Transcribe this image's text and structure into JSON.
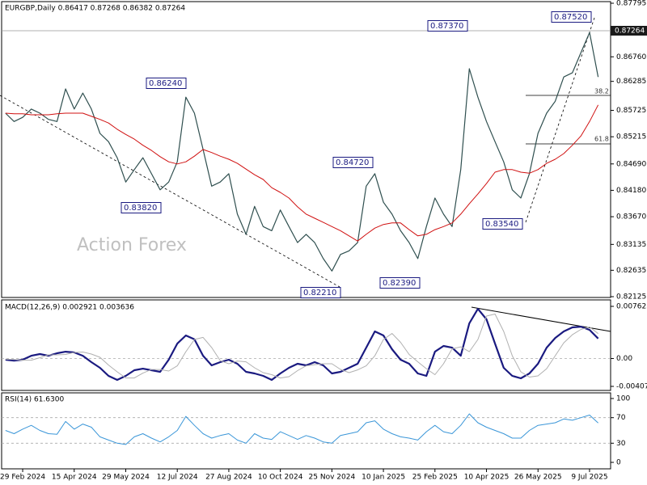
{
  "chart_data": [
    {
      "type": "line",
      "title": "EURGBP,Daily  0.86417 0.87268 0.86382 0.87264",
      "categories": [
        null,
        null,
        "29 Feb 2024",
        null,
        null,
        null,
        null,
        null,
        "15 Apr 2024",
        null,
        null,
        null,
        null,
        null,
        "29 May 2024",
        null,
        null,
        null,
        null,
        null,
        "12 Jul 2024",
        null,
        null,
        null,
        null,
        null,
        "27 Aug 2024",
        null,
        null,
        null,
        null,
        null,
        "10 Oct 2024",
        null,
        null,
        null,
        null,
        null,
        "25 Nov 2024",
        null,
        null,
        null,
        null,
        null,
        "10 Jan 2025",
        null,
        null,
        null,
        null,
        null,
        "25 Feb 2025",
        null,
        null,
        null,
        null,
        null,
        "10 Apr 2025",
        null,
        null,
        null,
        null,
        null,
        "26 May 2025",
        null,
        null,
        null,
        null,
        null,
        "9 Jul 2025",
        null
      ],
      "series": [
        {
          "color": "#2f4f4f",
          "values": [
            0.8567,
            0.8551,
            0.8559,
            0.8575,
            0.8567,
            0.8555,
            0.8551,
            0.8614,
            0.8575,
            0.8606,
            0.8575,
            0.8528,
            0.8512,
            0.8481,
            0.8434,
            0.8458,
            0.8481,
            0.845,
            0.8419,
            0.8434,
            0.8473,
            0.8598,
            0.8567,
            0.8497,
            0.8426,
            0.8434,
            0.845,
            0.8372,
            0.8333,
            0.8387,
            0.8348,
            0.834,
            0.838,
            0.8348,
            0.8317,
            0.8333,
            0.8317,
            0.8286,
            0.8262,
            0.8294,
            0.8301,
            0.8317,
            0.8426,
            0.845,
            0.8395,
            0.8372,
            0.834,
            0.8317,
            0.8286,
            0.8348,
            0.8403,
            0.8372,
            0.8348,
            0.8458,
            0.8653,
            0.8598,
            0.8551,
            0.8512,
            0.8473,
            0.8419,
            0.8403,
            0.845,
            0.8528,
            0.8567,
            0.859,
            0.8637,
            0.8645,
            0.8684,
            0.8723,
            0.8637
          ]
        },
        {
          "color": "#d01010",
          "values": [
            0.8567,
            0.8566,
            0.8566,
            0.8564,
            0.8564,
            0.8564,
            0.8566,
            0.8567,
            0.8567,
            0.8567,
            0.8561,
            0.8555,
            0.8548,
            0.8536,
            0.8526,
            0.8517,
            0.8505,
            0.8495,
            0.8483,
            0.8473,
            0.8469,
            0.8473,
            0.8484,
            0.8497,
            0.8491,
            0.8484,
            0.8478,
            0.847,
            0.8459,
            0.8448,
            0.8439,
            0.8423,
            0.8414,
            0.8403,
            0.8386,
            0.8372,
            0.8364,
            0.8356,
            0.8348,
            0.834,
            0.833,
            0.832,
            0.8333,
            0.8345,
            0.8352,
            0.8355,
            0.8355,
            0.8342,
            0.833,
            0.8333,
            0.8342,
            0.8348,
            0.8355,
            0.8372,
            0.8392,
            0.8411,
            0.8431,
            0.8453,
            0.8458,
            0.8458,
            0.8453,
            0.8451,
            0.8458,
            0.847,
            0.8478,
            0.8489,
            0.8505,
            0.8523,
            0.8551,
            0.8583
          ]
        }
      ],
      "ylim": [
        0.82125,
        0.87795
      ],
      "yticks": [
        {
          "value": 0.87795,
          "label": "0.87795"
        },
        {
          "value": 0.8676,
          "label": "0.86760"
        },
        {
          "value": 0.86285,
          "label": "0.86285"
        },
        {
          "value": 0.85725,
          "label": "0.85725"
        },
        {
          "value": 0.85215,
          "label": "0.85215"
        },
        {
          "value": 0.8469,
          "label": "0.84690"
        },
        {
          "value": 0.8418,
          "label": "0.84180"
        },
        {
          "value": 0.8367,
          "label": "0.83670"
        },
        {
          "value": 0.83135,
          "label": "0.83135"
        },
        {
          "value": 0.82635,
          "label": "0.82635"
        },
        {
          "value": 0.82125,
          "label": "0.82125"
        }
      ],
      "last_price": {
        "value": 0.87264,
        "label": "0.87264"
      },
      "annotations": [
        "0.86240",
        "0.83820",
        "0.84720",
        "0.82210",
        "0.82390",
        "0.87370",
        "0.83540",
        "0.87520",
        "38.2",
        "61.8",
        "Action Forex"
      ],
      "grid": false
    },
    {
      "type": "line",
      "title": "MACD(12,26,9) 0.002921 0.003636",
      "series": [
        {
          "color": "#1a1a80",
          "values": [
            -0.00018,
            -0.0003,
            -0.00018,
            0.00041,
            0.00065,
            0.00041,
            0.00077,
            0.001,
            0.00089,
            0.00041,
            -0.00053,
            -0.00136,
            -0.00254,
            -0.00313,
            -0.00254,
            -0.00171,
            -0.00148,
            -0.00171,
            -0.00195,
            -0.00018,
            0.00218,
            0.00337,
            0.00281,
            0.00041,
            -0.001,
            -0.00053,
            -0.00018,
            -0.00077,
            -0.00195,
            -0.00218,
            -0.00254,
            -0.00313,
            -0.00218,
            -0.00136,
            -0.00077,
            -0.001,
            -0.00053,
            -0.001,
            -0.00218,
            -0.00195,
            -0.00136,
            -0.00077,
            0.00159,
            0.00396,
            0.00337,
            0.00136,
            -0.00018,
            -0.00077,
            -0.00218,
            -0.00254,
            0.001,
            0.00183,
            0.00159,
            0.00041,
            0.00514,
            0.00726,
            0.00573,
            0.00218,
            -0.00136,
            -0.00254,
            -0.00289,
            -0.00218,
            -0.00077,
            0.00159,
            0.003,
            0.00396,
            0.00455,
            0.00466,
            0.00419,
            0.00292
          ]
        },
        {
          "color": "#b0b0b0",
          "values": [
            -0.0001,
            -0.00015,
            -0.00024,
            -0.00024,
            0.00012,
            0.00053,
            0.00053,
            0.00059,
            0.00089,
            0.00095,
            0.00065,
            0.00018,
            -0.00095,
            -0.00195,
            -0.00284,
            -0.00284,
            -0.00213,
            -0.0016,
            -0.0016,
            -0.00183,
            -0.00107,
            0.001,
            0.00278,
            0.00309,
            0.00161,
            -0.0003,
            -0.00077,
            -0.00036,
            -0.00048,
            -0.00136,
            -0.00207,
            -0.00236,
            -0.00284,
            -0.00266,
            -0.00177,
            -0.00107,
            -0.00089,
            -0.00077,
            -0.00077,
            -0.00159,
            -0.00207,
            -0.00166,
            -0.00107,
            0.00041,
            0.00278,
            0.00367,
            0.00237,
            0.00059,
            -0.00048,
            -0.00148,
            -0.00236,
            -0.00077,
            0.00142,
            0.00171,
            0.001,
            0.00278,
            0.0062,
            0.0065,
            0.00396,
            0.00041,
            -0.00195,
            -0.00272,
            -0.00254,
            -0.00148,
            0.00041,
            0.0023,
            0.00348,
            0.00426,
            0.00461,
            0.003636
          ]
        }
      ],
      "ylim": [
        -0.004073,
        0.007623
      ],
      "yticks": [
        -0.004073,
        {
          "value": 0,
          "label": "0.00"
        },
        0.007623
      ],
      "grid": true
    },
    {
      "type": "line",
      "title": "RSI(14) 61.6300",
      "series": [
        {
          "color": "#3a96d8",
          "values": [
            50,
            45,
            52,
            58,
            50,
            45,
            44,
            64,
            52,
            60,
            55,
            40,
            35,
            30,
            28,
            40,
            45,
            38,
            32,
            40,
            50,
            72,
            58,
            45,
            38,
            42,
            45,
            35,
            30,
            45,
            38,
            36,
            48,
            42,
            36,
            42,
            38,
            32,
            30,
            42,
            45,
            48,
            62,
            65,
            52,
            45,
            40,
            38,
            35,
            48,
            58,
            48,
            45,
            58,
            76,
            62,
            55,
            50,
            45,
            38,
            38,
            50,
            58,
            60,
            62,
            68,
            66,
            70,
            74,
            61.63
          ]
        }
      ],
      "ylim": [
        0,
        100
      ],
      "yticks": [
        0,
        30,
        70,
        100
      ],
      "grid": true
    }
  ]
}
